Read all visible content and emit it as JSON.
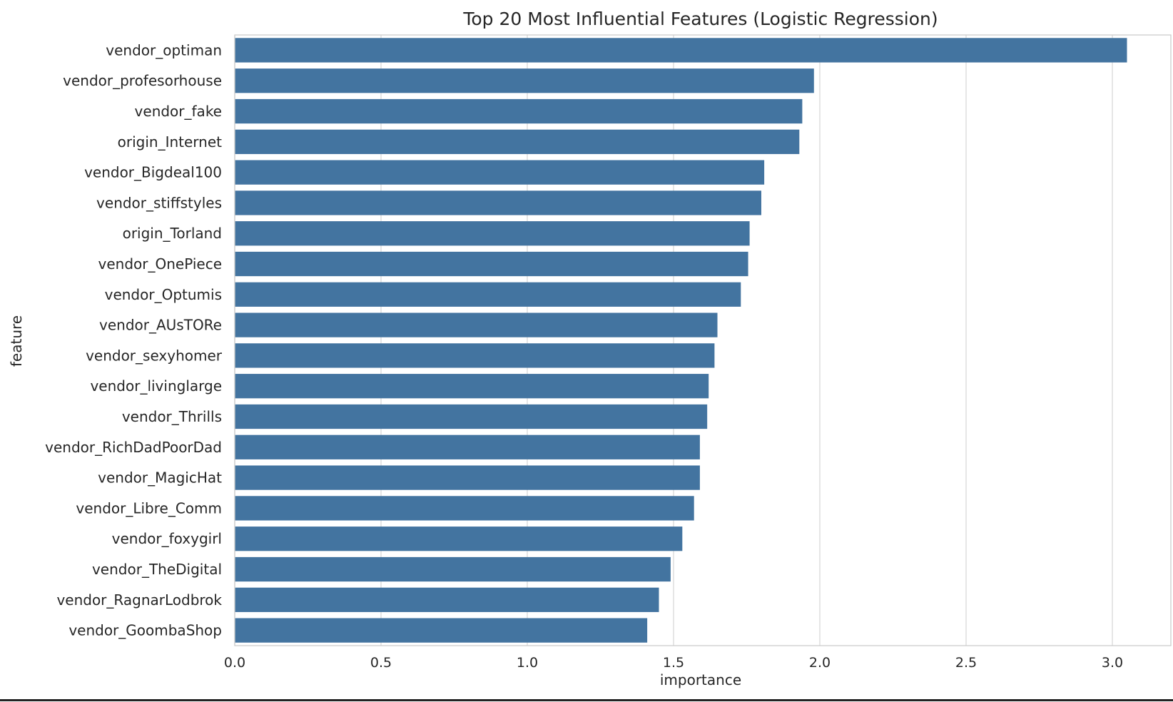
{
  "chart_data": {
    "type": "bar",
    "orientation": "horizontal",
    "title": "Top 20 Most Influential Features (Logistic Regression)",
    "xlabel": "importance",
    "ylabel": "feature",
    "xlim": [
      0,
      3.2
    ],
    "xticks": [
      0.0,
      0.5,
      1.0,
      1.5,
      2.0,
      2.5,
      3.0
    ],
    "xtick_labels": [
      "0.0",
      "0.5",
      "1.0",
      "1.5",
      "2.0",
      "2.5",
      "3.0"
    ],
    "grid": "vertical",
    "bar_color": "#4374a0",
    "categories": [
      "vendor_optiman",
      "vendor_profesorhouse",
      "vendor_fake",
      "origin_Internet",
      "vendor_Bigdeal100",
      "vendor_stiffstyles",
      "origin_Torland",
      "vendor_OnePiece",
      "vendor_Optumis",
      "vendor_AUsTORe",
      "vendor_sexyhomer",
      "vendor_livinglarge",
      "vendor_Thrills",
      "vendor_RichDadPoorDad",
      "vendor_MagicHat",
      "vendor_Libre_Comm",
      "vendor_foxygirl",
      "vendor_TheDigital",
      "vendor_RagnarLodbrok",
      "vendor_GoombaShop"
    ],
    "values": [
      3.05,
      1.98,
      1.94,
      1.93,
      1.81,
      1.8,
      1.76,
      1.755,
      1.73,
      1.65,
      1.64,
      1.62,
      1.615,
      1.59,
      1.59,
      1.57,
      1.53,
      1.49,
      1.45,
      1.41
    ]
  }
}
